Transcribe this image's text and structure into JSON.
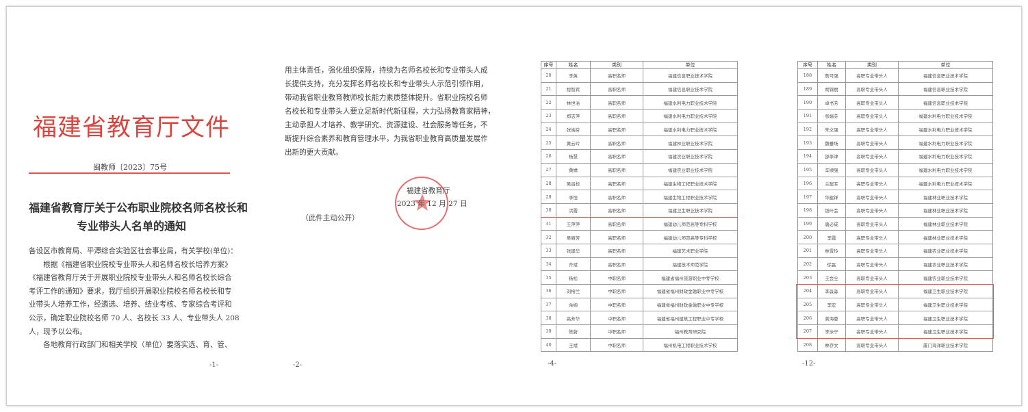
{
  "page1": {
    "header_title": "福建省教育厅文件",
    "doc_number": "闽教师〔2023〕75号",
    "heading_lines": [
      "福建省教育厅关于公布职业院校名师名校长和",
      "专业带头人名单的通知"
    ],
    "body_lines": [
      "各设区市教育局、平潭综合实验区社会事业局，有关学校(单位)：",
      "　　根据《福建省职业院校专业带头人和名师名校长培养方案》",
      "《福建省教育厅关于开展职业院校专业带头人和名师名校长综合",
      "考评工作的通知》要求，我厅组织开展职业院校名师名校长和专",
      "业带头人培养工作，经遴选、培养、结业考核、专家综合考评和",
      "公示，确定职业院校名师 70 人、名校长 33 人、专业带头人 208",
      "人，现予以公布。",
      "　　各地教育行政部门和相关学校（单位）要落实选、育、管、"
    ],
    "page_number": "-1-"
  },
  "page2": {
    "body_lines": [
      "用主体责任，强化组织保障，持续为名师名校长和专业带头人成",
      "长提供支持，充分发挥名师名校长和专业带头人示范引领作用，",
      "带动我省职业教育教师校长能力素质整体提升。省职业院校名师",
      "名校长和专业带头人要立足新时代新征程，大力弘扬教育家精神，",
      "主动承担人才培养、教学研究、资源建设、社会服务等任务，不",
      "断提升综合素养和教育管理水平，为我省职业教育高质量发展作",
      "出新的更大贡献。"
    ],
    "signature": "福建省教育厅",
    "date": "2023 年 12 月 27 日",
    "note": "（此件主动公开）",
    "stamp_text": "福建省教育厅",
    "page_number": "-2-"
  },
  "page4": {
    "columns": [
      "序号",
      "姓名",
      "类别",
      "单位"
    ],
    "rows": [
      [
        "20",
        "李英",
        "高职名师",
        "福建信息职业技术学院"
      ],
      [
        "21",
        "程智宾",
        "高职名师",
        "福建信息职业技术学院"
      ],
      [
        "22",
        "林世治",
        "高职名师",
        "福建水利电力职业技术学院"
      ],
      [
        "23",
        "郑志萍",
        "高职名师",
        "福建水利电力职业技术学院"
      ],
      [
        "24",
        "张端芬",
        "高职名师",
        "福建水利电力职业技术学院"
      ],
      [
        "25",
        "黄云玲",
        "高职名师",
        "福建林业职业技术学院"
      ],
      [
        "26",
        "杨慧",
        "高职名师",
        "福建农业职业技术学院"
      ],
      [
        "27",
        "黄婧",
        "高职名师",
        "福建农业职业技术学院"
      ],
      [
        "28",
        "吴昌标",
        "高职名师",
        "福建生物工程职业技术学院"
      ],
      [
        "29",
        "李恒",
        "高职名师",
        "福建生物工程职业技术学院"
      ],
      [
        "30",
        "洪霞",
        "高职名师",
        "福建卫生职业技术学院"
      ],
      [
        "31",
        "王萍萍",
        "高职名师",
        "福建幼儿师范高等专科学校"
      ],
      [
        "32",
        "吴丽芳",
        "高职名师",
        "福建幼儿师范高等专科学校"
      ],
      [
        "33",
        "张建华",
        "高职名师",
        "福建艺术职业学院"
      ],
      [
        "34",
        "齐斌",
        "高职名师",
        "福建技术师范学院"
      ],
      [
        "35",
        "杨松",
        "中职名师",
        "福建省福州旅游职业中专学校"
      ],
      [
        "36",
        "刘榕兰",
        "中职名师",
        "福建省福州财政金融职业中专学校"
      ],
      [
        "37",
        "余绚",
        "中职名师",
        "福建省福州财政金融职业中专学校"
      ],
      [
        "38",
        "高芳华",
        "中职名师",
        "福建省福州建筑工程职业中专学校"
      ],
      [
        "39",
        "陈蔚",
        "中职名师",
        "福州教育研究院"
      ],
      [
        "40",
        "王斌",
        "中职名师",
        "福州机电工程职业技术学校"
      ]
    ],
    "highlight_row": "30",
    "page_number": "-4-"
  },
  "page12": {
    "columns": [
      "序号",
      "姓名",
      "类别",
      "单位"
    ],
    "rows": [
      [
        "188",
        "詹可强",
        "高职专业带头人",
        "福建信息职业技术学院"
      ],
      [
        "189",
        "胡锦丽",
        "高职专业带头人",
        "福建信息职业技术学院"
      ],
      [
        "190",
        "卓书芳",
        "高职专业带头人",
        "福建信息职业技术学院"
      ],
      [
        "191",
        "张端芬",
        "高职专业带头人",
        "福建水利电力职业技术学院"
      ],
      [
        "192",
        "朱文强",
        "高职专业带头人",
        "福建水利电力职业技术学院"
      ],
      [
        "193",
        "魏垂场",
        "高职专业带头人",
        "福建水利电力职业技术学院"
      ],
      [
        "194",
        "邵李津",
        "高职专业带头人",
        "福建水利电力职业技术学院"
      ],
      [
        "195",
        "辛顺强",
        "高职专业带头人",
        "福建水利电力职业技术学院"
      ],
      [
        "196",
        "兰建军",
        "高职专业带头人",
        "福建水利电力职业技术学院"
      ],
      [
        "197",
        "华建祥",
        "高职专业带头人",
        "福建林业职业技术学院"
      ],
      [
        "198",
        "钱叶会",
        "高职专业带头人",
        "福建林业职业技术学院"
      ],
      [
        "199",
        "唐必成",
        "高职专业带头人",
        "福建林业职业技术学院"
      ],
      [
        "200",
        "李霞",
        "高职专业带头人",
        "福建林业职业技术学院"
      ],
      [
        "201",
        "林雪玲",
        "高职专业带头人",
        "福建农业职业技术学院"
      ],
      [
        "202",
        "徐磊",
        "高职专业带头人",
        "福建农业职业技术学院"
      ],
      [
        "203",
        "王会全",
        "高职专业带头人",
        "福建农业职业技术学院"
      ],
      [
        "204",
        "李淼淼",
        "高职专业带头人",
        "福建卫生职业技术学院"
      ],
      [
        "205",
        "李宏",
        "高职专业带头人",
        "福建卫生职业技术学院"
      ],
      [
        "206",
        "龚海蓉",
        "高职专业带头人",
        "福建卫生职业技术学院"
      ],
      [
        "207",
        "李泳宁",
        "高职专业带头人",
        "福建卫生职业技术学院"
      ],
      [
        "208",
        "林存文",
        "高职专业带头人",
        "厦门海洋职业技术学院"
      ]
    ],
    "highlight_rows": [
      "204",
      "205",
      "206",
      "207"
    ],
    "page_number": "-12-"
  },
  "colors": {
    "header_red": "#d9453f",
    "highlight_red": "#e05a50"
  }
}
